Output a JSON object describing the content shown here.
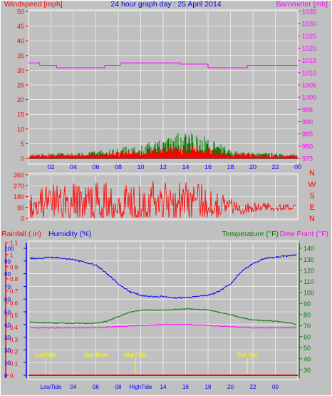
{
  "colors": {
    "background": "#c0c0c0",
    "wind": "#ff0000",
    "gust": "#008000",
    "barometer": "#ff00ff",
    "title": "#0000ff",
    "direction": "#ff0000",
    "rainfall": "#ff0000",
    "humidity": "#0000ff",
    "temperature": "#008000",
    "dewpoint": "#ff00ff",
    "tide": "#ffff00"
  },
  "chart_data": [
    {
      "type": "bar",
      "title": "24 hour graph day : 25 April 2014",
      "left_axis_label": "Windspeed [mph]",
      "right_axis_label": "Barometer [mb]",
      "ylim": [
        0,
        50
      ],
      "y2lim": [
        975,
        1035
      ],
      "left_ticks": [
        0,
        5,
        10,
        15,
        20,
        25,
        30,
        35,
        40,
        45,
        50
      ],
      "right_ticks": [
        975,
        980,
        985,
        990,
        995,
        1000,
        1005,
        1010,
        1015,
        1020,
        1025,
        1030,
        1035
      ],
      "x_ticks": [
        "02",
        "04",
        "06",
        "08",
        "10",
        "12",
        "14",
        "16",
        "18",
        "20",
        "22",
        "00"
      ],
      "windspeed_profile": [
        [
          0,
          1.5
        ],
        [
          5,
          1.6
        ],
        [
          8,
          2.0
        ],
        [
          10,
          2.6
        ],
        [
          12,
          3.4
        ],
        [
          13.5,
          4.2
        ],
        [
          15,
          3.8
        ],
        [
          16.5,
          3.0
        ],
        [
          18,
          1.8
        ],
        [
          20,
          1.4
        ],
        [
          24,
          1.2
        ]
      ],
      "gust_profile": [
        [
          0,
          1.0
        ],
        [
          5,
          1.5
        ],
        [
          8,
          2.5
        ],
        [
          10,
          3.5
        ],
        [
          12,
          5.0
        ],
        [
          13.5,
          6.5
        ],
        [
          15,
          6.0
        ],
        [
          16.5,
          4.5
        ],
        [
          18,
          2.2
        ],
        [
          20,
          1.5
        ],
        [
          24,
          1.2
        ]
      ],
      "barometer_steps": [
        [
          0,
          1014
        ],
        [
          1,
          1013
        ],
        [
          2.5,
          1012
        ],
        [
          6.8,
          1013
        ],
        [
          8.2,
          1014
        ],
        [
          12.5,
          1014
        ],
        [
          13.5,
          1013.5
        ],
        [
          16,
          1012
        ],
        [
          19.5,
          1013
        ],
        [
          24,
          1013
        ]
      ]
    },
    {
      "type": "scatter",
      "right_labels": [
        "N",
        "W",
        "S",
        "E",
        "N"
      ],
      "left_ticks": [
        0,
        90,
        180,
        270,
        360
      ],
      "ylim": [
        0,
        360
      ],
      "direction_profile": [
        [
          0,
          130
        ],
        [
          4,
          135
        ],
        [
          8,
          140
        ],
        [
          11,
          150
        ],
        [
          14,
          150
        ],
        [
          17,
          120
        ],
        [
          19,
          80
        ],
        [
          21,
          95
        ],
        [
          24,
          90
        ]
      ],
      "direction_spread": [
        [
          0,
          150
        ],
        [
          8,
          160
        ],
        [
          12,
          170
        ],
        [
          16,
          150
        ],
        [
          18.5,
          50
        ],
        [
          24,
          20
        ]
      ]
    },
    {
      "type": "line",
      "axis_labels": [
        "Rainfall (.in)",
        "Humidity (%)",
        "Temperature (°F)",
        "Dew Point (°F)"
      ],
      "rain_ticks": [
        "0",
        "0.1",
        "0.2",
        "0.3",
        "0.4",
        "0.5",
        "0.6",
        "0.7",
        "0.8",
        "0.9",
        "1",
        "1.1"
      ],
      "humidity_ticks": [
        0,
        10,
        20,
        30,
        40,
        50,
        60,
        70,
        80,
        90,
        100
      ],
      "temp_ticks": [
        30,
        40,
        50,
        60,
        70,
        80,
        90,
        100,
        110,
        120,
        130,
        140
      ],
      "temp_lim": [
        25,
        145
      ],
      "humidity_lim": [
        0,
        104.5
      ],
      "x_tick_labels": [
        "LowTide",
        "04",
        "06",
        "08",
        "HighTide",
        "14",
        "16",
        "18",
        "20",
        "22",
        "00"
      ],
      "humidity": [
        [
          0,
          92
        ],
        [
          1,
          92
        ],
        [
          2,
          93
        ],
        [
          3,
          92
        ],
        [
          4,
          91
        ],
        [
          5,
          89
        ],
        [
          6,
          87
        ],
        [
          7,
          80
        ],
        [
          8,
          72
        ],
        [
          9,
          66
        ],
        [
          10,
          63
        ],
        [
          11,
          62
        ],
        [
          12,
          62
        ],
        [
          13,
          61
        ],
        [
          14,
          61
        ],
        [
          15,
          62
        ],
        [
          16,
          63
        ],
        [
          17,
          66
        ],
        [
          18,
          72
        ],
        [
          19,
          82
        ],
        [
          20,
          88
        ],
        [
          21,
          92
        ],
        [
          22,
          93
        ],
        [
          23,
          94
        ],
        [
          24,
          95
        ]
      ],
      "temperature": [
        [
          0,
          73
        ],
        [
          3,
          72
        ],
        [
          6,
          72
        ],
        [
          7,
          74
        ],
        [
          8,
          78
        ],
        [
          9,
          82
        ],
        [
          10,
          84
        ],
        [
          12,
          84
        ],
        [
          14,
          85
        ],
        [
          16,
          84
        ],
        [
          18,
          80
        ],
        [
          19,
          77
        ],
        [
          20,
          75
        ],
        [
          22,
          74
        ],
        [
          24,
          71
        ]
      ],
      "dewpoint": [
        [
          0,
          68
        ],
        [
          6,
          68
        ],
        [
          8,
          69
        ],
        [
          10,
          70
        ],
        [
          12,
          71
        ],
        [
          14,
          71
        ],
        [
          16,
          70
        ],
        [
          18,
          69
        ],
        [
          20,
          68
        ],
        [
          24,
          68
        ]
      ],
      "rainfall": [
        [
          0,
          0
        ],
        [
          24,
          0
        ]
      ],
      "tide_markers": [
        {
          "label": "LowTide",
          "hour": 1.5
        },
        {
          "label": "Sun Rise",
          "hour": 6.0
        },
        {
          "label": "HighTide",
          "hour": 9.5
        },
        {
          "label": "Sun Set",
          "hour": 19.5
        }
      ]
    }
  ]
}
